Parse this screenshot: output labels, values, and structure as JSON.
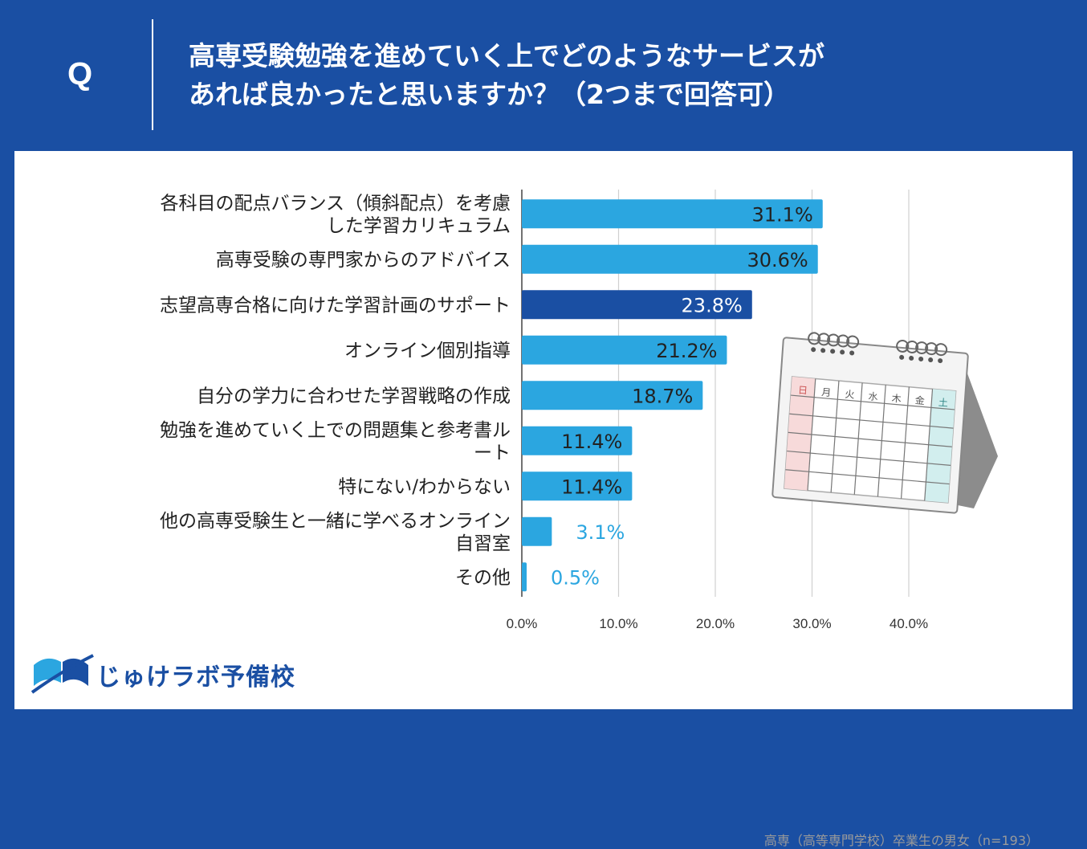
{
  "header": {
    "q_mark": "Q",
    "question_line1": "高専受験勉強を進めていく上でどのようなサービスが",
    "question_line2": "あれば良かったと思いますか？（2つまで回答可）"
  },
  "chart_data": {
    "type": "bar",
    "orientation": "horizontal",
    "categories": [
      [
        "各科目の配点バランス（傾斜配点）を考慮",
        "した学習カリキュラム"
      ],
      [
        "高専受験の専門家からのアドバイス"
      ],
      [
        "志望高専合格に向けた学習計画のサポート"
      ],
      [
        "オンライン個別指導"
      ],
      [
        "自分の学力に合わせた学習戦略の作成"
      ],
      [
        "勉強を進めていく上での問題集と参考書ル",
        "ート"
      ],
      [
        "特にない/わからない"
      ],
      [
        "他の高専受験生と一緒に学べるオンライン",
        "自習室"
      ],
      [
        "その他"
      ]
    ],
    "values": [
      31.1,
      30.6,
      23.8,
      21.2,
      18.7,
      11.4,
      11.4,
      3.1,
      0.5
    ],
    "value_labels": [
      "31.1%",
      "30.6%",
      "23.8%",
      "21.2%",
      "18.7%",
      "11.4%",
      "11.4%",
      "3.1%",
      "0.5%"
    ],
    "highlight_index": 2,
    "xlim": [
      0,
      45
    ],
    "ticks": [
      0,
      10,
      20,
      30,
      40
    ],
    "tick_labels": [
      "0.0%",
      "10.0%",
      "20.0%",
      "30.0%",
      "40.0%"
    ],
    "grid": true,
    "colors": {
      "bar": "#2ba6e0",
      "highlight": "#1a4fa3",
      "grid": "#d0d0d0",
      "outside_label": "#2ba6e0",
      "inside_label": "#222222",
      "highlight_label": "#ffffff"
    }
  },
  "calendar": {
    "days": [
      "日",
      "月",
      "火",
      "水",
      "木",
      "金",
      "土"
    ]
  },
  "logo": {
    "text": "じゅけラボ予備校"
  },
  "footnote": "高専（高等専門学校）卒業生の男女（n=193）"
}
